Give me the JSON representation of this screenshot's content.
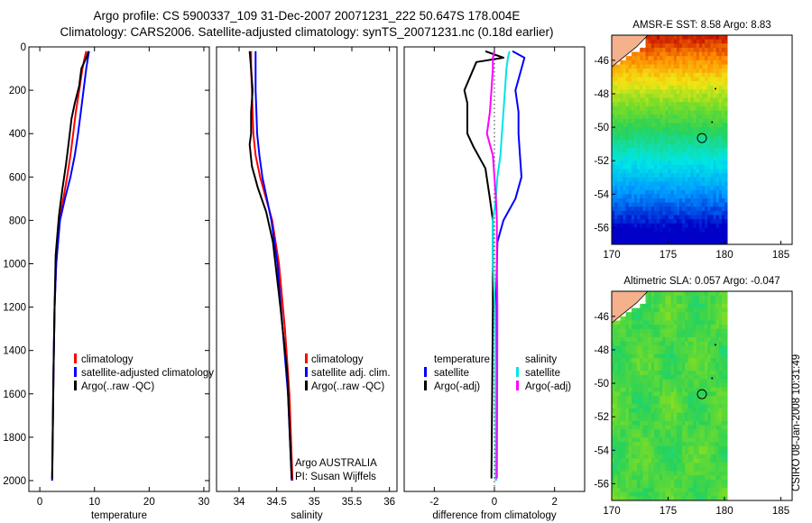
{
  "header": {
    "title_line1": "Argo profile: CS 5900337_109 31-Dec-2007 20071231_222 50.647S 178.004E",
    "title_line2": "Climatology: CARS2006. Satellite-adjusted climatology: synTS_20071231.nc (0.18d earlier)"
  },
  "side_stamp": "CSIRO 08-Jan-2008 10:31:49",
  "colors": {
    "climatology": "#ff0000",
    "satellite": "#0000ff",
    "argo": "#000000",
    "salinity_satellite": "#00e5e5",
    "salinity_argo": "#ff00ff"
  },
  "chart_data": [
    {
      "type": "line",
      "xlabel": "temperature",
      "ylabel": "",
      "xlim": [
        -2,
        31
      ],
      "ylim": [
        2050,
        0
      ],
      "xticks": [
        0,
        10,
        20,
        30
      ],
      "yticks": [
        0,
        200,
        400,
        600,
        800,
        1000,
        1200,
        1400,
        1600,
        1800,
        2000
      ],
      "legend": {
        "position": "lower-right",
        "entries": [
          {
            "label": "climatology",
            "color": "#ff0000"
          },
          {
            "label": "satellite-adjusted climatology",
            "color": "#0000ff"
          },
          {
            "label": "Argo(..raw -QC)",
            "color": "#000000"
          }
        ]
      },
      "series": [
        {
          "name": "climatology",
          "color": "#ff0000",
          "x": [
            8.5,
            8.2,
            7.8,
            7.2,
            6.6,
            6.1,
            5.6,
            5.0,
            4.3,
            3.6,
            3.0,
            2.7,
            2.5,
            2.35,
            2.25
          ],
          "y": [
            20,
            50,
            100,
            200,
            300,
            400,
            500,
            600,
            700,
            800,
            1000,
            1200,
            1500,
            1800,
            2000
          ]
        },
        {
          "name": "satellite-adjusted climatology",
          "color": "#0000ff",
          "x": [
            9.0,
            8.8,
            8.5,
            8.0,
            7.5,
            7.0,
            6.4,
            5.6,
            4.6,
            3.7,
            3.0,
            2.7,
            2.5,
            2.35,
            2.25
          ],
          "y": [
            20,
            50,
            100,
            200,
            300,
            400,
            500,
            600,
            700,
            800,
            1000,
            1200,
            1500,
            1800,
            2000
          ]
        },
        {
          "name": "Argo(..raw -QC)",
          "color": "#000000",
          "x": [
            8.9,
            8.6,
            7.6,
            7.2,
            6.4,
            5.8,
            5.3,
            4.8,
            4.1,
            3.5,
            2.9,
            2.7,
            2.5,
            2.35,
            2.25
          ],
          "y": [
            20,
            45,
            100,
            180,
            260,
            330,
            440,
            540,
            660,
            780,
            960,
            1200,
            1500,
            1800,
            1990
          ]
        }
      ],
      "annotations": []
    },
    {
      "type": "line",
      "xlabel": "salinity",
      "ylabel": "",
      "xlim": [
        33.7,
        36.1
      ],
      "ylim": [
        2050,
        0
      ],
      "xticks": [
        34,
        34.5,
        35,
        35.5,
        36
      ],
      "yticks": [],
      "legend": {
        "position": "lower-right",
        "entries": [
          {
            "label": "climatology",
            "color": "#ff0000"
          },
          {
            "label": "satellite adj. clim.",
            "color": "#0000ff"
          },
          {
            "label": "Argo(..raw -QC)",
            "color": "#000000"
          }
        ]
      },
      "series": [
        {
          "name": "climatology",
          "color": "#ff0000",
          "x": [
            34.16,
            34.16,
            34.17,
            34.18,
            34.19,
            34.22,
            34.28,
            34.36,
            34.44,
            34.53,
            34.61,
            34.67,
            34.71
          ],
          "y": [
            20,
            100,
            200,
            300,
            400,
            500,
            600,
            700,
            800,
            1000,
            1300,
            1600,
            2000
          ]
        },
        {
          "name": "satellite adj. clim.",
          "color": "#0000ff",
          "x": [
            34.22,
            34.22,
            34.22,
            34.23,
            34.24,
            34.27,
            34.31,
            34.37,
            34.43,
            34.51,
            34.58,
            34.65,
            34.7
          ],
          "y": [
            20,
            100,
            200,
            300,
            400,
            500,
            600,
            700,
            800,
            1000,
            1300,
            1600,
            2000
          ]
        },
        {
          "name": "Argo(..raw -QC)",
          "color": "#000000",
          "x": [
            34.14,
            34.16,
            34.18,
            34.16,
            34.16,
            34.14,
            34.17,
            34.25,
            34.36,
            34.45,
            34.55,
            34.64,
            34.7
          ],
          "y": [
            20,
            100,
            200,
            300,
            400,
            450,
            550,
            650,
            760,
            900,
            1200,
            1500,
            1990
          ]
        }
      ],
      "annotations": [
        "Argo AUSTRALIA",
        "PI: Susan Wijffels"
      ]
    },
    {
      "type": "line",
      "xlabel": "difference from climatology",
      "ylabel": "",
      "xlim": [
        -3,
        3
      ],
      "ylim": [
        2050,
        0
      ],
      "xticks": [
        -2,
        0,
        2
      ],
      "yticks": [],
      "legend": {
        "position": "lower-center",
        "entries": [
          {
            "label": "temperature",
            "color": ""
          },
          {
            "label": "satellite",
            "color": "#0000ff"
          },
          {
            "label": "Argo(-adj)",
            "color": "#000000"
          },
          {
            "label": "salinity",
            "color": ""
          },
          {
            "label": "satellite",
            "color": "#00e5e5"
          },
          {
            "label": "Argo(-adj)",
            "color": "#ff00ff"
          }
        ]
      },
      "series": [
        {
          "name": "temperature satellite",
          "color": "#0000ff",
          "x": [
            0.6,
            1.0,
            0.9,
            0.7,
            0.8,
            0.8,
            0.85,
            0.9,
            0.7,
            0.3,
            0.1,
            0.05,
            0.05
          ],
          "y": [
            20,
            50,
            100,
            200,
            300,
            400,
            500,
            600,
            700,
            800,
            900,
            1200,
            2000
          ]
        },
        {
          "name": "temperature Argo(-adj)",
          "color": "#000000",
          "x": [
            -0.3,
            0.3,
            -0.6,
            -1.0,
            -0.9,
            -0.9,
            -0.7,
            -0.3,
            -0.15,
            -0.05,
            -0.05,
            -0.05,
            -0.1
          ],
          "y": [
            20,
            50,
            70,
            200,
            260,
            400,
            460,
            560,
            700,
            800,
            1000,
            1200,
            1990
          ]
        },
        {
          "name": "salinity satellite",
          "color": "#00e5e5",
          "x": [
            0.5,
            0.45,
            0.4,
            0.35,
            0.3,
            0.25,
            0.2,
            0.1,
            0.05,
            -0.05,
            -0.05,
            0.02,
            0.05
          ],
          "y": [
            20,
            50,
            100,
            200,
            300,
            400,
            500,
            600,
            700,
            800,
            1000,
            1200,
            2000
          ]
        },
        {
          "name": "salinity Argo(-adj)",
          "color": "#ff00ff",
          "x": [
            0.0,
            -0.05,
            -0.05,
            -0.1,
            -0.15,
            -0.25,
            -0.05,
            0.0,
            0.05,
            0.08,
            0.08,
            0.1,
            0.08
          ],
          "y": [
            20,
            50,
            100,
            200,
            300,
            400,
            500,
            600,
            700,
            800,
            1000,
            1200,
            1990
          ]
        }
      ],
      "annotations": []
    },
    {
      "type": "heatmap",
      "title": "AMSR-E SST: 8.58 Argo: 8.83",
      "xlabel": "",
      "ylabel": "",
      "xlim": [
        170,
        186
      ],
      "ylim": [
        -57,
        -44.5
      ],
      "xticks": [
        170,
        175,
        180,
        185
      ],
      "yticks": [
        -46,
        -48,
        -50,
        -52,
        -54,
        -56
      ],
      "marker": {
        "lon": 178.0,
        "lat": -50.647
      }
    },
    {
      "type": "heatmap",
      "title": "Altimetric SLA: 0.057 Argo: -0.047",
      "xlabel": "",
      "ylabel": "",
      "xlim": [
        170,
        186
      ],
      "ylim": [
        -57,
        -44.5
      ],
      "xticks": [
        170,
        175,
        180,
        185
      ],
      "yticks": [
        -46,
        -48,
        -50,
        -52,
        -54,
        -56
      ],
      "marker": {
        "lon": 178.0,
        "lat": -50.647
      }
    }
  ]
}
